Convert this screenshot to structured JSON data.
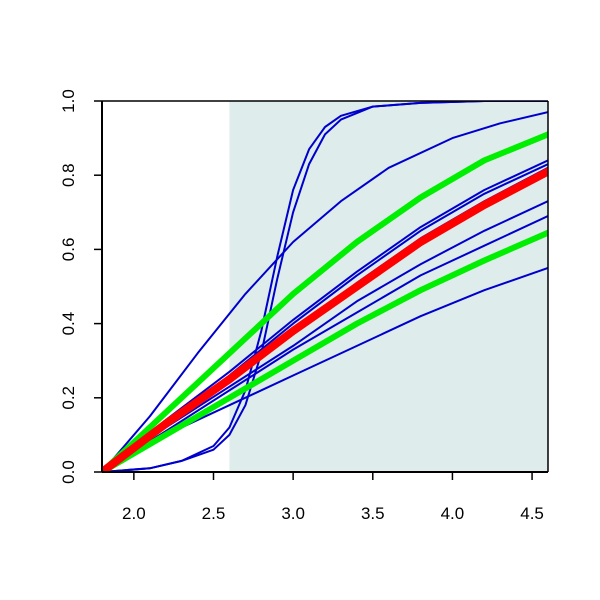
{
  "chart_data": {
    "type": "line",
    "title": "",
    "xlabel": "",
    "ylabel": "",
    "xlim": [
      1.8,
      4.6
    ],
    "ylim": [
      0,
      1
    ],
    "x_ticks": [
      {
        "value": 2.0,
        "label": "2.0"
      },
      {
        "value": 2.5,
        "label": "2.5"
      },
      {
        "value": 3.0,
        "label": "3.0"
      },
      {
        "value": 3.5,
        "label": "3.5"
      },
      {
        "value": 4.0,
        "label": "4.0"
      },
      {
        "value": 4.5,
        "label": "4.5"
      }
    ],
    "y_ticks": [
      {
        "value": 0.0,
        "label": "0.0"
      },
      {
        "value": 0.2,
        "label": "0.2"
      },
      {
        "value": 0.4,
        "label": "0.4"
      },
      {
        "value": 0.6,
        "label": "0.6"
      },
      {
        "value": 0.8,
        "label": "0.8"
      },
      {
        "value": 1.0,
        "label": "1.0"
      }
    ],
    "shaded_region": {
      "x": [
        2.6,
        4.6
      ],
      "y": [
        0,
        1
      ],
      "color": "#deecec"
    },
    "grid": false,
    "legend": "none",
    "series": [
      {
        "color": "#0000cc",
        "width": 2,
        "x": [
          1.8,
          2.1,
          2.4,
          2.7,
          3.0,
          3.3,
          3.6,
          4.0,
          4.3,
          4.6
        ],
        "y": [
          0.0,
          0.15,
          0.32,
          0.48,
          0.62,
          0.73,
          0.82,
          0.9,
          0.94,
          0.97
        ]
      },
      {
        "color": "#0000cc",
        "width": 2,
        "x": [
          1.8,
          2.1,
          2.3,
          2.5,
          2.6,
          2.7,
          2.8,
          2.9,
          3.0,
          3.1,
          3.2,
          3.3,
          3.5,
          3.8,
          4.2,
          4.6
        ],
        "y": [
          0.0,
          0.01,
          0.03,
          0.07,
          0.12,
          0.22,
          0.38,
          0.58,
          0.76,
          0.87,
          0.93,
          0.96,
          0.985,
          0.995,
          1.0,
          1.0
        ]
      },
      {
        "color": "#0000cc",
        "width": 2,
        "x": [
          1.8,
          2.1,
          2.3,
          2.5,
          2.6,
          2.7,
          2.8,
          2.9,
          3.0,
          3.1,
          3.2,
          3.3,
          3.5,
          3.8,
          4.2,
          4.6
        ],
        "y": [
          0.0,
          0.01,
          0.03,
          0.06,
          0.1,
          0.18,
          0.32,
          0.52,
          0.7,
          0.83,
          0.91,
          0.95,
          0.985,
          0.995,
          1.0,
          1.0
        ]
      },
      {
        "color": "#0000cc",
        "width": 2,
        "x": [
          1.8,
          2.2,
          2.6,
          3.0,
          3.4,
          3.8,
          4.2,
          4.6
        ],
        "y": [
          0.0,
          0.14,
          0.27,
          0.41,
          0.54,
          0.66,
          0.76,
          0.84
        ]
      },
      {
        "color": "#0000cc",
        "width": 2,
        "x": [
          1.8,
          2.2,
          2.6,
          3.0,
          3.4,
          3.8,
          4.2,
          4.6
        ],
        "y": [
          0.0,
          0.13,
          0.26,
          0.4,
          0.53,
          0.65,
          0.75,
          0.83
        ]
      },
      {
        "color": "#0000cc",
        "width": 2,
        "x": [
          1.8,
          2.2,
          2.6,
          3.0,
          3.4,
          3.8,
          4.2,
          4.6
        ],
        "y": [
          0.0,
          0.13,
          0.25,
          0.38,
          0.51,
          0.63,
          0.73,
          0.82
        ]
      },
      {
        "color": "#0000cc",
        "width": 2,
        "x": [
          1.8,
          2.2,
          2.6,
          3.0,
          3.4,
          3.8,
          4.2,
          4.6
        ],
        "y": [
          0.0,
          0.12,
          0.23,
          0.34,
          0.46,
          0.56,
          0.65,
          0.73
        ]
      },
      {
        "color": "#0000cc",
        "width": 2,
        "x": [
          1.8,
          2.2,
          2.6,
          3.0,
          3.4,
          3.8,
          4.2,
          4.6
        ],
        "y": [
          0.0,
          0.11,
          0.22,
          0.33,
          0.43,
          0.53,
          0.61,
          0.69
        ]
      },
      {
        "color": "#0000cc",
        "width": 2,
        "x": [
          1.8,
          2.2,
          2.6,
          3.0,
          3.4,
          3.8,
          4.2,
          4.6
        ],
        "y": [
          0.0,
          0.1,
          0.18,
          0.26,
          0.34,
          0.42,
          0.49,
          0.55
        ]
      },
      {
        "color": "#00ee00",
        "width": 6,
        "x": [
          1.8,
          2.2,
          2.6,
          3.0,
          3.4,
          3.8,
          4.2,
          4.6
        ],
        "y": [
          0.0,
          0.16,
          0.32,
          0.48,
          0.62,
          0.74,
          0.84,
          0.91
        ]
      },
      {
        "color": "#00ee00",
        "width": 6,
        "x": [
          1.8,
          2.2,
          2.6,
          3.0,
          3.4,
          3.8,
          4.2,
          4.6
        ],
        "y": [
          0.0,
          0.1,
          0.2,
          0.3,
          0.4,
          0.49,
          0.57,
          0.645
        ]
      },
      {
        "color": "#ff0000",
        "width": 8,
        "x": [
          1.8,
          2.2,
          2.6,
          3.0,
          3.4,
          3.8,
          4.2,
          4.6
        ],
        "y": [
          0.0,
          0.13,
          0.25,
          0.38,
          0.5,
          0.62,
          0.72,
          0.81
        ]
      }
    ]
  }
}
